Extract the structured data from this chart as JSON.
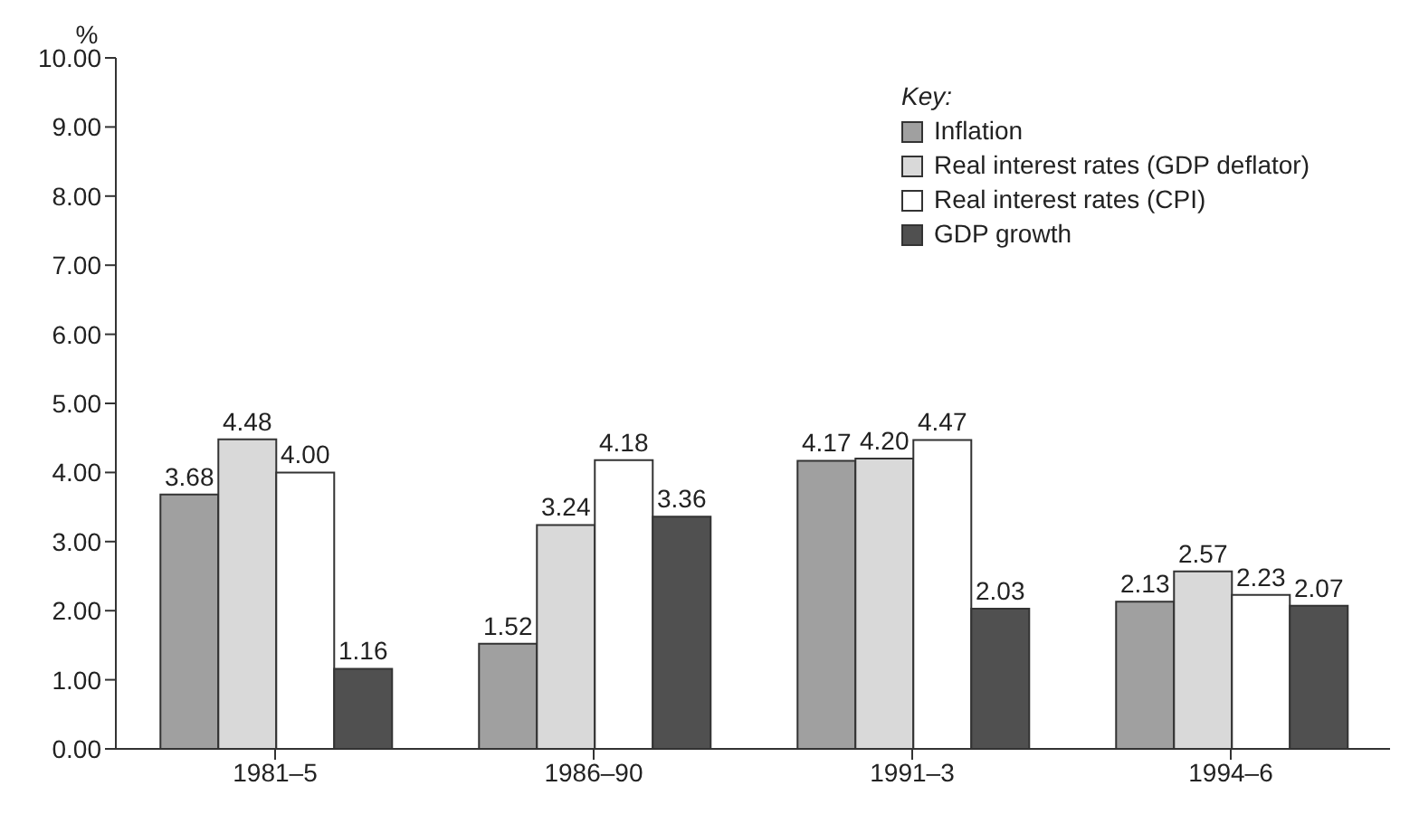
{
  "chart_data": {
    "type": "bar",
    "ylabel": "%",
    "legend_title": "Key:",
    "categories": [
      "1981–5",
      "1986–90",
      "1991–3",
      "1994–6"
    ],
    "series": [
      {
        "name": "Inflation",
        "color": "#a0a0a0",
        "values": [
          3.68,
          1.52,
          4.17,
          2.13
        ],
        "value_labels": [
          "3.68",
          "1.52",
          "4.17",
          "2.13"
        ]
      },
      {
        "name": "Real interest rates (GDP deflator)",
        "color": "#d9d9d9",
        "values": [
          4.48,
          3.24,
          4.2,
          2.57
        ],
        "value_labels": [
          "4.48",
          "3.24",
          "4.20",
          "2.57"
        ]
      },
      {
        "name": "Real interest rates (CPI)",
        "color": "#ffffff",
        "values": [
          4.0,
          4.18,
          4.47,
          2.23
        ],
        "value_labels": [
          "4.00",
          "4.18",
          "4.47",
          "2.23"
        ]
      },
      {
        "name": "GDP growth",
        "color": "#505050",
        "values": [
          1.16,
          3.36,
          2.03,
          2.07
        ],
        "value_labels": [
          "1.16",
          "3.36",
          "2.03",
          "2.07"
        ]
      }
    ],
    "ylim": [
      0,
      10
    ],
    "yticks": [
      {
        "value": 0,
        "label": "0.00"
      },
      {
        "value": 1,
        "label": "1.00"
      },
      {
        "value": 2,
        "label": "2.00"
      },
      {
        "value": 3,
        "label": "3.00"
      },
      {
        "value": 4,
        "label": "4.00"
      },
      {
        "value": 5,
        "label": "5.00"
      },
      {
        "value": 6,
        "label": "6.00"
      },
      {
        "value": 7,
        "label": "7.00"
      },
      {
        "value": 8,
        "label": "8.00"
      },
      {
        "value": 9,
        "label": "9.00"
      },
      {
        "value": 10,
        "label": "10.00"
      }
    ],
    "grid": false,
    "legend": "top right"
  }
}
